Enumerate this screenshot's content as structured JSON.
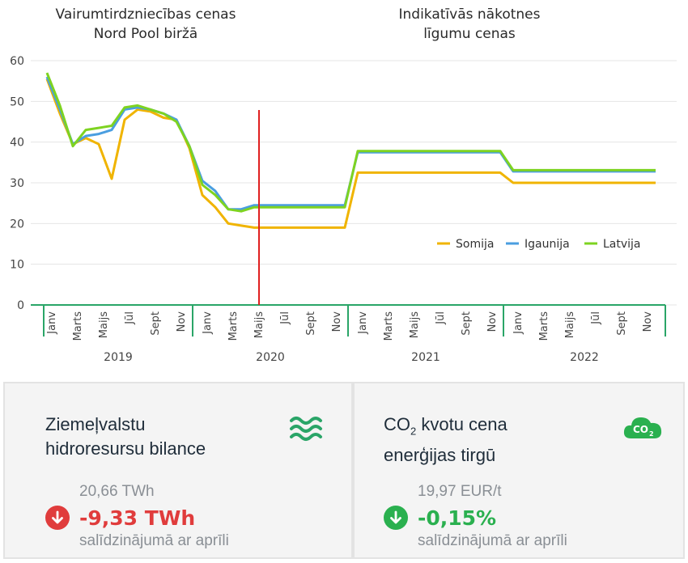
{
  "chart_data": {
    "type": "line",
    "panel_titles": {
      "left": [
        "Vairumtirdzniecības cenas",
        "Nord Pool biržā"
      ],
      "right": [
        "Indikatīvās nākotnes",
        "līgumu cenas"
      ]
    },
    "ylim": [
      0,
      60
    ],
    "yticks": [
      0,
      10,
      20,
      30,
      40,
      50,
      60
    ],
    "grid": true,
    "legend_position": "right-middle",
    "years": [
      "2019",
      "2020",
      "2021",
      "2022"
    ],
    "month_labels": [
      "Janv",
      "Marts",
      "Maijs",
      "Jūl",
      "Sept",
      "Nov"
    ],
    "divider_month_index": 16,
    "series": [
      {
        "name": "Somija",
        "color": "#f0b400",
        "values": [
          55.5,
          47,
          39.5,
          41,
          39.5,
          31,
          45.5,
          48,
          47.5,
          46,
          45.5,
          38.5,
          27,
          24,
          20,
          19.5,
          19,
          19,
          19,
          19,
          19,
          19,
          19,
          19,
          32.5,
          32.5,
          32.5,
          32.5,
          32.5,
          32.5,
          32.5,
          32.5,
          32.5,
          32.5,
          32.5,
          32.5,
          30,
          30,
          30,
          30,
          30,
          30,
          30,
          30,
          30,
          30,
          30,
          30
        ]
      },
      {
        "name": "Igaunija",
        "color": "#4a9ee0",
        "values": [
          56,
          48,
          39.5,
          41.5,
          42,
          43,
          48,
          48.5,
          48,
          47,
          45.5,
          39,
          30.5,
          28,
          23.5,
          23.5,
          24.5,
          24.5,
          24.5,
          24.5,
          24.5,
          24.5,
          24.5,
          24.5,
          37.5,
          37.5,
          37.5,
          37.5,
          37.5,
          37.5,
          37.5,
          37.5,
          37.5,
          37.5,
          37.5,
          37.5,
          32.8,
          32.8,
          32.8,
          32.8,
          32.8,
          32.8,
          32.8,
          32.8,
          32.8,
          32.8,
          32.8,
          32.8
        ]
      },
      {
        "name": "Latvija",
        "color": "#7ed321",
        "values": [
          57,
          49,
          39,
          43,
          43.5,
          44,
          48.5,
          49,
          48,
          47,
          45,
          39,
          29.5,
          27,
          23.5,
          23,
          24,
          24,
          24,
          24,
          24,
          24,
          24,
          24,
          37.8,
          37.8,
          37.8,
          37.8,
          37.8,
          37.8,
          37.8,
          37.8,
          37.8,
          37.8,
          37.8,
          37.8,
          33.1,
          33.1,
          33.1,
          33.1,
          33.1,
          33.1,
          33.1,
          33.1,
          33.1,
          33.1,
          33.1,
          33.1
        ]
      }
    ]
  },
  "colors": {
    "axis_green": "#2aa568",
    "divider_red": "#e02020",
    "down_red": "#e03c3c",
    "down_green": "#2ab04f"
  },
  "cards": {
    "hydro": {
      "title_line1": "Ziemeļvalstu",
      "title_line2": "hidroresursu bilance",
      "prev_value": "20,66 TWh",
      "change": "-9,33 TWh",
      "compare": "salīdzinājumā ar aprīli",
      "icon": "waves-icon"
    },
    "co2": {
      "title_co": "CO",
      "title_sub": "2",
      "title_rest": " kvotu cena",
      "title_line2": "enerģijas tirgū",
      "prev_value": "19,97 EUR/t",
      "change": "-0,15%",
      "compare": "salīdzinājumā ar aprīli",
      "icon": "co2-cloud-icon",
      "icon_text": "CO",
      "icon_sub": "2"
    }
  }
}
